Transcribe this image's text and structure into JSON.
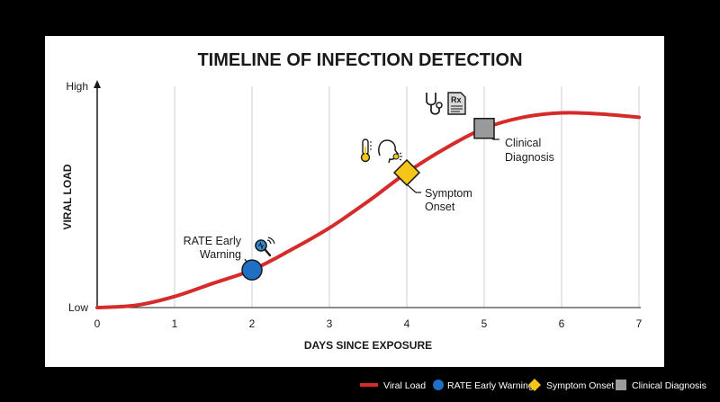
{
  "chart_data": {
    "type": "line",
    "title": "TIMELINE OF INFECTION DETECTION",
    "xlabel": "DAYS SINCE EXPOSURE",
    "ylabel": "VIRAL LOAD",
    "x_ticks": [
      "0",
      "1",
      "2",
      "3",
      "4",
      "5",
      "6",
      "7"
    ],
    "y_tick_labels": {
      "low": "Low",
      "high": "High"
    },
    "xlim": [
      0,
      7
    ],
    "ylim": [
      0,
      1
    ],
    "grid": "vertical",
    "series": [
      {
        "name": "Viral Load",
        "color": "#d62b2b",
        "x": [
          0,
          0.5,
          1,
          1.5,
          2,
          2.5,
          3,
          3.5,
          4,
          4.5,
          5,
          5.5,
          6,
          6.5,
          7
        ],
        "y": [
          0.0,
          0.01,
          0.05,
          0.11,
          0.17,
          0.26,
          0.36,
          0.48,
          0.61,
          0.72,
          0.81,
          0.86,
          0.88,
          0.875,
          0.86
        ]
      }
    ],
    "markers": [
      {
        "name": "RATE Early Warning",
        "shape": "circle",
        "color": "#1f6fc4",
        "x": 2.0,
        "y": 0.17,
        "label_lines": [
          "RATE Early",
          "Warning"
        ],
        "icon": "magnifier-signal-icon"
      },
      {
        "name": "Symptom Onset",
        "shape": "diamond",
        "color": "#f5c518",
        "x": 4.0,
        "y": 0.61,
        "label_lines": [
          "Symptom",
          "Onset"
        ],
        "icon": "thermometer-sick-face-icon"
      },
      {
        "name": "Clinical Diagnosis",
        "shape": "square",
        "color": "#9a9a9a",
        "x": 5.0,
        "y": 0.81,
        "label_lines": [
          "Clinical",
          "Diagnosis"
        ],
        "icon": "stethoscope-prescription-icon"
      }
    ],
    "legend": {
      "placement": "bottom-right",
      "items": [
        {
          "label": "Viral Load",
          "shape": "line",
          "color": "#d62b2b"
        },
        {
          "label": "RATE Early Warning",
          "shape": "circle",
          "color": "#1f6fc4"
        },
        {
          "label": "Symptom Onset",
          "shape": "diamond",
          "color": "#f5c518"
        },
        {
          "label": "Clinical Diagnosis",
          "shape": "square",
          "color": "#9a9a9a"
        }
      ]
    }
  }
}
